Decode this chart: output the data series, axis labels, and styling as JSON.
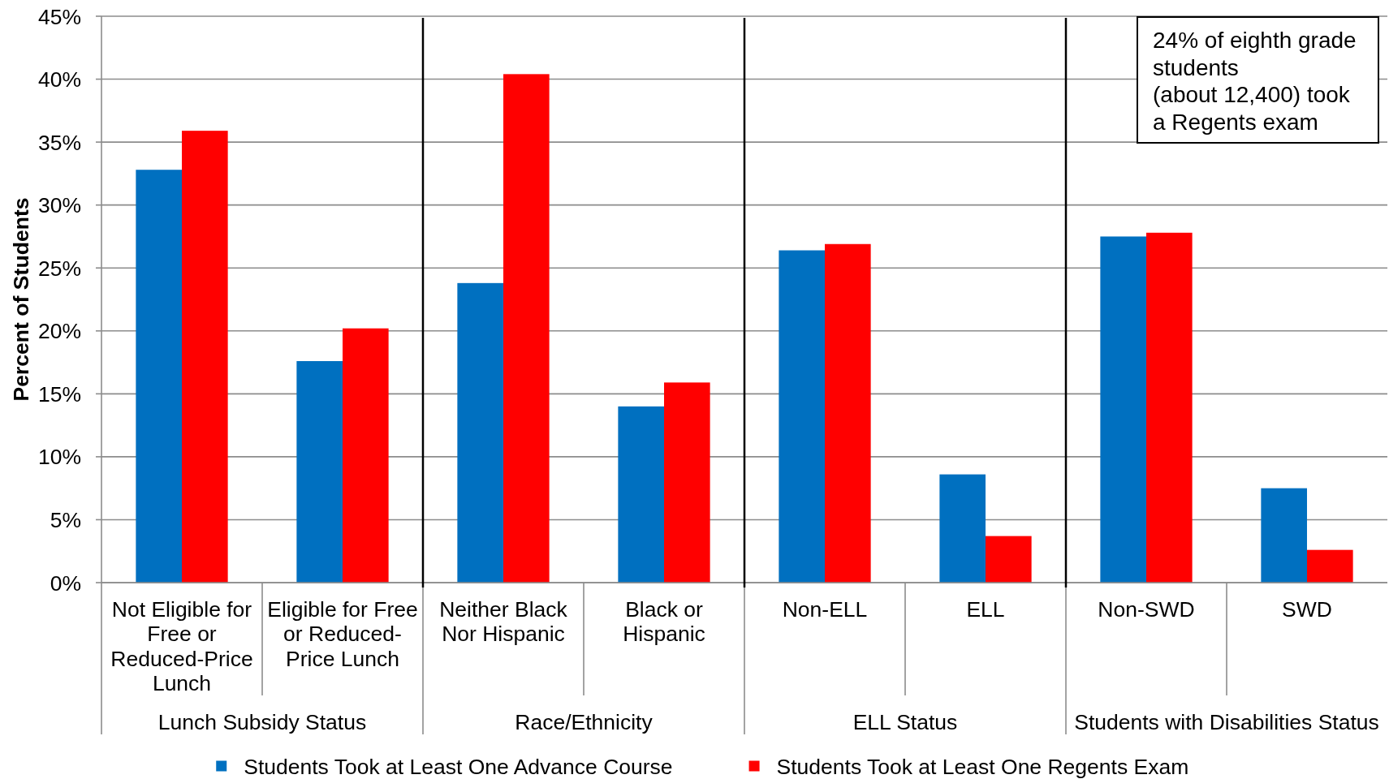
{
  "chart_data": {
    "type": "bar",
    "categories": [
      "Not Eligible for Free or Reduced-Price Lunch",
      "Eligible for Free or Reduced-Price Lunch",
      "Neither Black Nor Hispanic",
      "Black or Hispanic",
      "Non-ELL",
      "ELL",
      "Non-SWD",
      "SWD"
    ],
    "series": [
      {
        "name": "Students Took at Least One Advance Course",
        "color": "#0070c0",
        "values": [
          32.8,
          17.6,
          23.8,
          14.0,
          26.4,
          8.6,
          27.5,
          7.5
        ]
      },
      {
        "name": "Students Took at Least One Regents Exam",
        "color": "#ff0000",
        "values": [
          35.9,
          20.2,
          40.4,
          15.9,
          26.9,
          3.7,
          27.8,
          2.6
        ]
      }
    ],
    "ylabel": "Percent of Students",
    "ylim": [
      0,
      45
    ],
    "yticks": [
      {
        "value": 0,
        "label": "0%"
      },
      {
        "value": 5,
        "label": "5%"
      },
      {
        "value": 10,
        "label": "10%"
      },
      {
        "value": 15,
        "label": "15%"
      },
      {
        "value": 20,
        "label": "20%"
      },
      {
        "value": 25,
        "label": "25%"
      },
      {
        "value": 30,
        "label": "30%"
      },
      {
        "value": 35,
        "label": "35%"
      },
      {
        "value": 40,
        "label": "40%"
      },
      {
        "value": 45,
        "label": "45%"
      }
    ],
    "grid": "y",
    "legend": "bottom",
    "annotations": [
      "24% of eighth grade students\n(about 12,400) took a Regents exam",
      "Lunch Subsidy Status",
      "Race/Ethnicity",
      "ELL Status",
      "Students with Disabilities Status"
    ]
  }
}
